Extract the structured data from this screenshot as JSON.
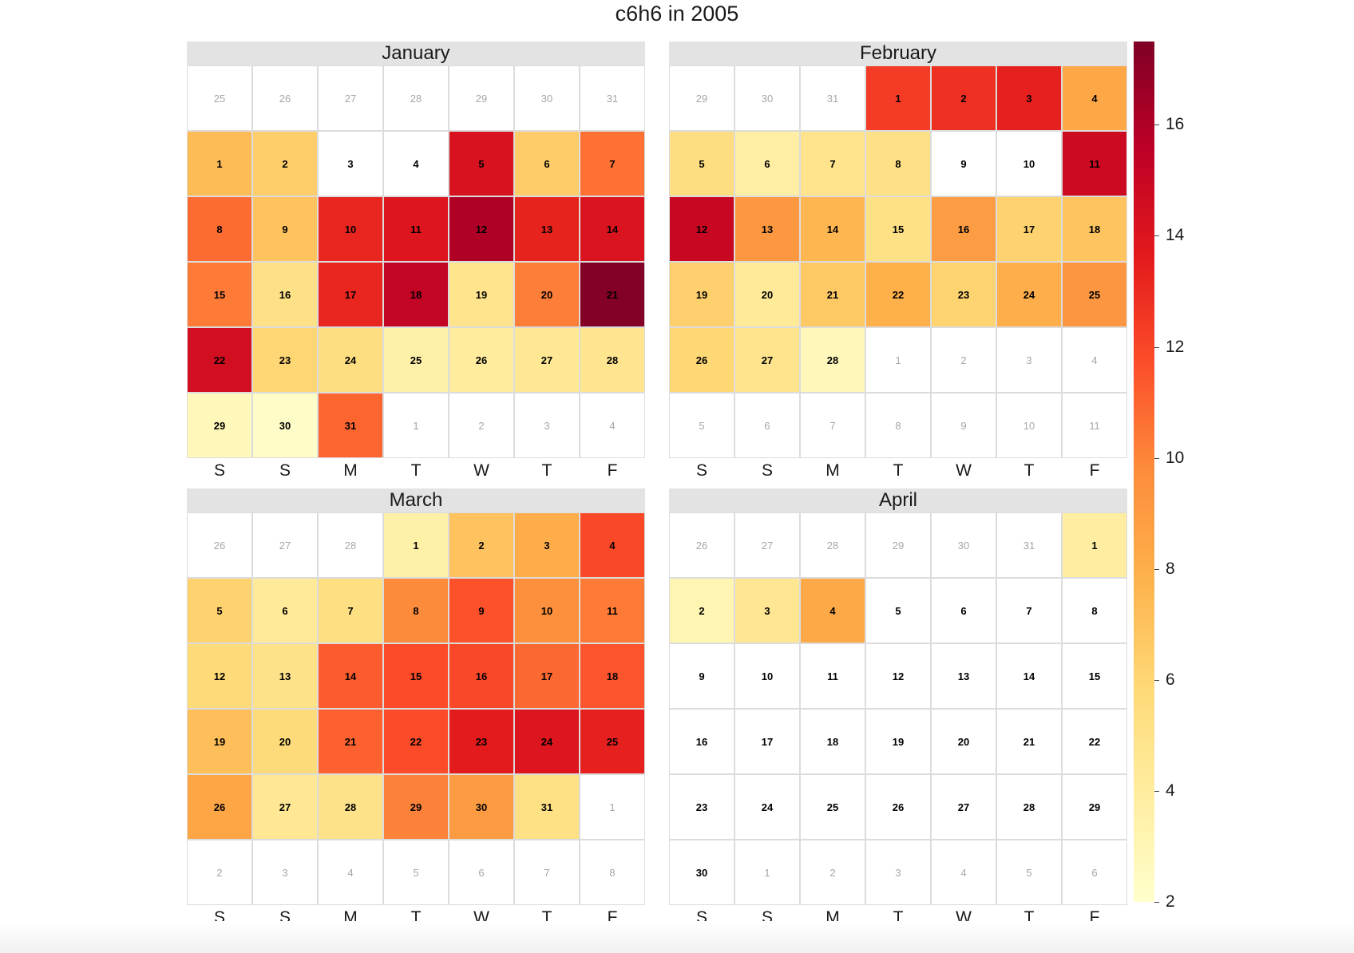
{
  "chart_data": {
    "type": "heatmap",
    "title": "c6h6 in 2005",
    "weekday_labels": [
      "S",
      "S",
      "M",
      "T",
      "W",
      "T",
      "F"
    ],
    "color_scale": {
      "min": 2,
      "max": 17.5,
      "ticks": [
        2,
        4,
        6,
        8,
        10,
        12,
        14,
        16
      ],
      "stops": [
        "#ffffcc",
        "#ffeda0",
        "#fed976",
        "#feb24c",
        "#fd8d3c",
        "#fc4e2a",
        "#e31a1c",
        "#bd0026",
        "#800026"
      ]
    },
    "months": [
      {
        "name": "January",
        "weeks": [
          [
            {
              "d": "25",
              "cur": false
            },
            {
              "d": "26",
              "cur": false
            },
            {
              "d": "27",
              "cur": false
            },
            {
              "d": "28",
              "cur": false
            },
            {
              "d": "29",
              "cur": false
            },
            {
              "d": "30",
              "cur": false
            },
            {
              "d": "31",
              "cur": false
            }
          ],
          [
            {
              "d": "1",
              "cur": true,
              "v": 7.3
            },
            {
              "d": "2",
              "cur": true,
              "v": 6.4
            },
            {
              "d": "3",
              "cur": true,
              "v": null
            },
            {
              "d": "4",
              "cur": true,
              "v": null
            },
            {
              "d": "5",
              "cur": true,
              "v": 14.2
            },
            {
              "d": "6",
              "cur": true,
              "v": 6.5
            },
            {
              "d": "7",
              "cur": true,
              "v": 10.6
            }
          ],
          [
            {
              "d": "8",
              "cur": true,
              "v": 10.8
            },
            {
              "d": "9",
              "cur": true,
              "v": 7.0
            },
            {
              "d": "10",
              "cur": true,
              "v": 13.2
            },
            {
              "d": "11",
              "cur": true,
              "v": 14.0
            },
            {
              "d": "12",
              "cur": true,
              "v": 16.0
            },
            {
              "d": "13",
              "cur": true,
              "v": 13.3
            },
            {
              "d": "14",
              "cur": true,
              "v": 14.1
            }
          ],
          [
            {
              "d": "15",
              "cur": true,
              "v": 10.3
            },
            {
              "d": "16",
              "cur": true,
              "v": 5.1
            },
            {
              "d": "17",
              "cur": true,
              "v": 13.2
            },
            {
              "d": "18",
              "cur": true,
              "v": 15.3
            },
            {
              "d": "19",
              "cur": true,
              "v": 4.8
            },
            {
              "d": "20",
              "cur": true,
              "v": 10.2
            },
            {
              "d": "21",
              "cur": true,
              "v": 17.4
            }
          ],
          [
            {
              "d": "22",
              "cur": true,
              "v": 14.5
            },
            {
              "d": "23",
              "cur": true,
              "v": 6.0
            },
            {
              "d": "24",
              "cur": true,
              "v": 5.4
            },
            {
              "d": "25",
              "cur": true,
              "v": 3.6
            },
            {
              "d": "26",
              "cur": true,
              "v": 4.0
            },
            {
              "d": "27",
              "cur": true,
              "v": 4.5
            },
            {
              "d": "28",
              "cur": true,
              "v": 4.7
            }
          ],
          [
            {
              "d": "29",
              "cur": true,
              "v": 2.8
            },
            {
              "d": "30",
              "cur": true,
              "v": 2.2
            },
            {
              "d": "31",
              "cur": true,
              "v": 11.0
            },
            {
              "d": "1",
              "cur": false
            },
            {
              "d": "2",
              "cur": false
            },
            {
              "d": "3",
              "cur": false
            },
            {
              "d": "4",
              "cur": false
            }
          ]
        ]
      },
      {
        "name": "February",
        "weeks": [
          [
            {
              "d": "29",
              "cur": false
            },
            {
              "d": "30",
              "cur": false
            },
            {
              "d": "31",
              "cur": false
            },
            {
              "d": "1",
              "cur": true,
              "v": 12.4
            },
            {
              "d": "2",
              "cur": true,
              "v": 12.8
            },
            {
              "d": "3",
              "cur": true,
              "v": 13.4
            },
            {
              "d": "4",
              "cur": true,
              "v": 8.4
            }
          ],
          [
            {
              "d": "5",
              "cur": true,
              "v": 5.4
            },
            {
              "d": "6",
              "cur": true,
              "v": 3.8
            },
            {
              "d": "7",
              "cur": true,
              "v": 4.8
            },
            {
              "d": "8",
              "cur": true,
              "v": 5.1
            },
            {
              "d": "9",
              "cur": true,
              "v": null
            },
            {
              "d": "10",
              "cur": true,
              "v": null
            },
            {
              "d": "11",
              "cur": true,
              "v": 14.8
            }
          ],
          [
            {
              "d": "12",
              "cur": true,
              "v": 15.0
            },
            {
              "d": "13",
              "cur": true,
              "v": 9.2
            },
            {
              "d": "14",
              "cur": true,
              "v": 7.6
            },
            {
              "d": "15",
              "cur": true,
              "v": 5.2
            },
            {
              "d": "16",
              "cur": true,
              "v": 8.9
            },
            {
              "d": "17",
              "cur": true,
              "v": 6.2
            },
            {
              "d": "18",
              "cur": true,
              "v": 6.9
            }
          ],
          [
            {
              "d": "19",
              "cur": true,
              "v": 6.3
            },
            {
              "d": "20",
              "cur": true,
              "v": 4.2
            },
            {
              "d": "21",
              "cur": true,
              "v": 6.7
            },
            {
              "d": "22",
              "cur": true,
              "v": 7.9
            },
            {
              "d": "23",
              "cur": true,
              "v": 6.1
            },
            {
              "d": "24",
              "cur": true,
              "v": 8.0
            },
            {
              "d": "25",
              "cur": true,
              "v": 9.3
            }
          ],
          [
            {
              "d": "26",
              "cur": true,
              "v": 5.9
            },
            {
              "d": "27",
              "cur": true,
              "v": 4.8
            },
            {
              "d": "28",
              "cur": true,
              "v": 2.8
            },
            {
              "d": "1",
              "cur": false
            },
            {
              "d": "2",
              "cur": false
            },
            {
              "d": "3",
              "cur": false
            },
            {
              "d": "4",
              "cur": false
            }
          ],
          [
            {
              "d": "5",
              "cur": false
            },
            {
              "d": "6",
              "cur": false
            },
            {
              "d": "7",
              "cur": false
            },
            {
              "d": "8",
              "cur": false
            },
            {
              "d": "9",
              "cur": false
            },
            {
              "d": "10",
              "cur": false
            },
            {
              "d": "11",
              "cur": false
            }
          ]
        ]
      },
      {
        "name": "March",
        "weeks": [
          [
            {
              "d": "26",
              "cur": false
            },
            {
              "d": "27",
              "cur": false
            },
            {
              "d": "28",
              "cur": false
            },
            {
              "d": "1",
              "cur": true,
              "v": 3.6
            },
            {
              "d": "2",
              "cur": true,
              "v": 7.0
            },
            {
              "d": "3",
              "cur": true,
              "v": 8.1
            },
            {
              "d": "4",
              "cur": true,
              "v": 11.9
            }
          ],
          [
            {
              "d": "5",
              "cur": true,
              "v": 6.2
            },
            {
              "d": "6",
              "cur": true,
              "v": 4.2
            },
            {
              "d": "7",
              "cur": true,
              "v": 5.3
            },
            {
              "d": "8",
              "cur": true,
              "v": 9.8
            },
            {
              "d": "9",
              "cur": true,
              "v": 11.6
            },
            {
              "d": "10",
              "cur": true,
              "v": 9.6
            },
            {
              "d": "11",
              "cur": true,
              "v": 10.3
            }
          ],
          [
            {
              "d": "12",
              "cur": true,
              "v": 5.8
            },
            {
              "d": "13",
              "cur": true,
              "v": 5.0
            },
            {
              "d": "14",
              "cur": true,
              "v": 11.3
            },
            {
              "d": "15",
              "cur": true,
              "v": 11.8
            },
            {
              "d": "16",
              "cur": true,
              "v": 11.9
            },
            {
              "d": "17",
              "cur": true,
              "v": 10.9
            },
            {
              "d": "18",
              "cur": true,
              "v": 11.5
            }
          ],
          [
            {
              "d": "19",
              "cur": true,
              "v": 7.2
            },
            {
              "d": "20",
              "cur": true,
              "v": 5.7
            },
            {
              "d": "21",
              "cur": true,
              "v": 11.1
            },
            {
              "d": "22",
              "cur": true,
              "v": 11.8
            },
            {
              "d": "23",
              "cur": true,
              "v": 13.6
            },
            {
              "d": "24",
              "cur": true,
              "v": 14.0
            },
            {
              "d": "25",
              "cur": true,
              "v": 13.4
            }
          ],
          [
            {
              "d": "26",
              "cur": true,
              "v": 8.5
            },
            {
              "d": "27",
              "cur": true,
              "v": 4.5
            },
            {
              "d": "28",
              "cur": true,
              "v": 5.0
            },
            {
              "d": "29",
              "cur": true,
              "v": 10.1
            },
            {
              "d": "30",
              "cur": true,
              "v": 9.0
            },
            {
              "d": "31",
              "cur": true,
              "v": 5.2
            },
            {
              "d": "1",
              "cur": false
            }
          ],
          [
            {
              "d": "2",
              "cur": false
            },
            {
              "d": "3",
              "cur": false
            },
            {
              "d": "4",
              "cur": false
            },
            {
              "d": "5",
              "cur": false
            },
            {
              "d": "6",
              "cur": false
            },
            {
              "d": "7",
              "cur": false
            },
            {
              "d": "8",
              "cur": false
            }
          ]
        ]
      },
      {
        "name": "April",
        "weeks": [
          [
            {
              "d": "26",
              "cur": false
            },
            {
              "d": "27",
              "cur": false
            },
            {
              "d": "28",
              "cur": false
            },
            {
              "d": "29",
              "cur": false
            },
            {
              "d": "30",
              "cur": false
            },
            {
              "d": "31",
              "cur": false
            },
            {
              "d": "1",
              "cur": true,
              "v": 3.9
            }
          ],
          [
            {
              "d": "2",
              "cur": true,
              "v": 3.1
            },
            {
              "d": "3",
              "cur": true,
              "v": 4.6
            },
            {
              "d": "4",
              "cur": true,
              "v": 8.3
            },
            {
              "d": "5",
              "cur": true,
              "v": null
            },
            {
              "d": "6",
              "cur": true,
              "v": null
            },
            {
              "d": "7",
              "cur": true,
              "v": null
            },
            {
              "d": "8",
              "cur": true,
              "v": null
            }
          ],
          [
            {
              "d": "9",
              "cur": true,
              "v": null
            },
            {
              "d": "10",
              "cur": true,
              "v": null
            },
            {
              "d": "11",
              "cur": true,
              "v": null
            },
            {
              "d": "12",
              "cur": true,
              "v": null
            },
            {
              "d": "13",
              "cur": true,
              "v": null
            },
            {
              "d": "14",
              "cur": true,
              "v": null
            },
            {
              "d": "15",
              "cur": true,
              "v": null
            }
          ],
          [
            {
              "d": "16",
              "cur": true,
              "v": null
            },
            {
              "d": "17",
              "cur": true,
              "v": null
            },
            {
              "d": "18",
              "cur": true,
              "v": null
            },
            {
              "d": "19",
              "cur": true,
              "v": null
            },
            {
              "d": "20",
              "cur": true,
              "v": null
            },
            {
              "d": "21",
              "cur": true,
              "v": null
            },
            {
              "d": "22",
              "cur": true,
              "v": null
            }
          ],
          [
            {
              "d": "23",
              "cur": true,
              "v": null
            },
            {
              "d": "24",
              "cur": true,
              "v": null
            },
            {
              "d": "25",
              "cur": true,
              "v": null
            },
            {
              "d": "26",
              "cur": true,
              "v": null
            },
            {
              "d": "27",
              "cur": true,
              "v": null
            },
            {
              "d": "28",
              "cur": true,
              "v": null
            },
            {
              "d": "29",
              "cur": true,
              "v": null
            }
          ],
          [
            {
              "d": "30",
              "cur": true,
              "v": null
            },
            {
              "d": "1",
              "cur": false
            },
            {
              "d": "2",
              "cur": false
            },
            {
              "d": "3",
              "cur": false
            },
            {
              "d": "4",
              "cur": false
            },
            {
              "d": "5",
              "cur": false
            },
            {
              "d": "6",
              "cur": false
            }
          ]
        ]
      }
    ]
  }
}
